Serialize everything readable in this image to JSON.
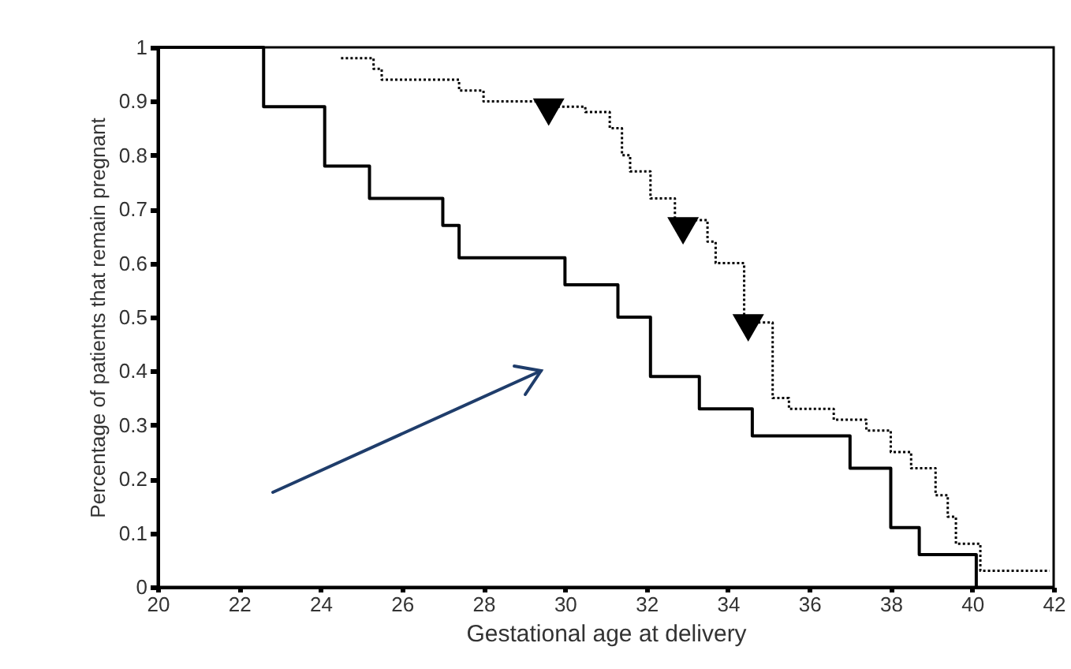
{
  "chart_data": {
    "type": "step",
    "xlabel": "Gestational age at  delivery",
    "ylabel": "Percentage of patients that remain pregnant",
    "xlim": [
      20,
      42
    ],
    "xticks": [
      20,
      22,
      24,
      26,
      28,
      30,
      32,
      34,
      36,
      38,
      40,
      42
    ],
    "ylim": [
      0,
      1
    ],
    "yticks": [
      0,
      0.1,
      0.2,
      0.3,
      0.4,
      0.5,
      0.6,
      0.7,
      0.8,
      0.9,
      1
    ],
    "grid": false,
    "series": [
      {
        "color": "#000000",
        "line_style": "solid",
        "x": [
          20,
          22.6,
          24.1,
          25.2,
          27.0,
          27.4,
          30.0,
          31.3,
          32.1,
          33.3,
          34.6,
          37.0,
          38.0,
          38.7,
          40.1
        ],
        "values": [
          1,
          0.89,
          0.78,
          0.72,
          0.67,
          0.61,
          0.56,
          0.5,
          0.39,
          0.33,
          0.28,
          0.22,
          0.11,
          0.06,
          0
        ]
      },
      {
        "color": "#000000",
        "line_style": "dotted",
        "x": [
          24.5,
          25.3,
          25.5,
          27.4,
          28.0,
          29.4,
          30.5,
          31.1,
          31.4,
          31.6,
          32.1,
          32.7,
          33.5,
          33.7,
          34.4,
          35.1,
          35.5,
          36.6,
          37.4,
          38.0,
          38.5,
          39.1,
          39.4,
          39.6,
          40.2,
          41.9
        ],
        "values": [
          0.98,
          0.96,
          0.94,
          0.92,
          0.9,
          0.89,
          0.88,
          0.85,
          0.8,
          0.77,
          0.72,
          0.68,
          0.64,
          0.6,
          0.49,
          0.35,
          0.33,
          0.31,
          0.29,
          0.25,
          0.22,
          0.17,
          0.13,
          0.08,
          0.03,
          0.03
        ]
      },
      {
        "type": "scatter",
        "marker": "triangle",
        "color": "#000000",
        "x": [
          29.6,
          32.9,
          34.5
        ],
        "values": [
          0.88,
          0.66,
          0.48
        ]
      }
    ]
  }
}
